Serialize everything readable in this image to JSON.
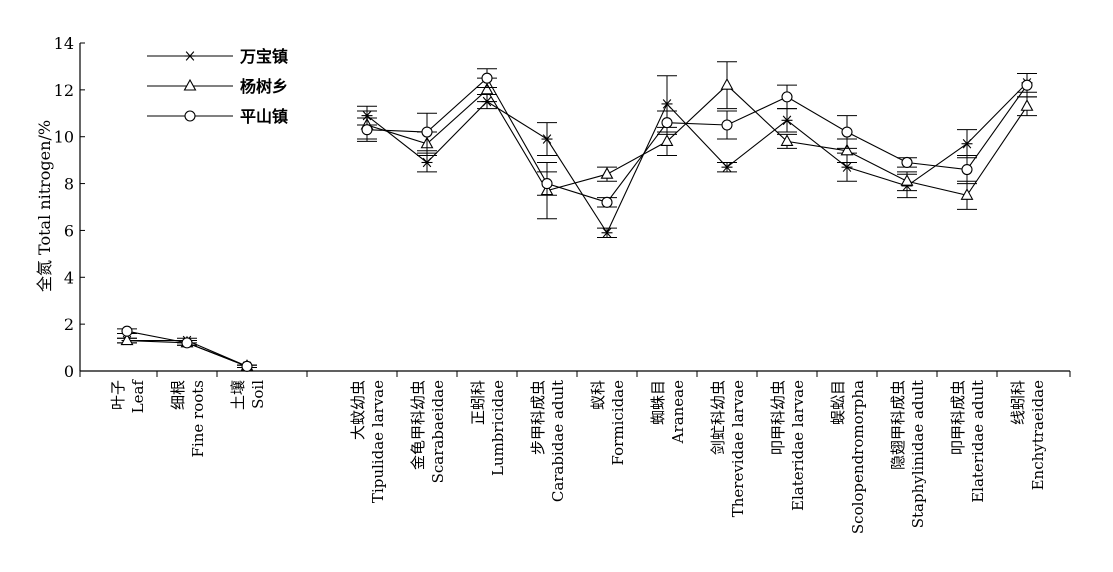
{
  "chart_data": {
    "type": "line",
    "ylabel": "全氮 Total nitrogen/%",
    "ylim": [
      0,
      14
    ],
    "yticks": [
      0,
      2,
      4,
      6,
      8,
      10,
      12,
      14
    ],
    "grid": false,
    "legend_position": "top-left",
    "categories": [
      {
        "zh": "叶子",
        "en": "Leaf"
      },
      {
        "zh": "细根",
        "en": "Fine roots"
      },
      {
        "zh": "土壤",
        "en": "Soil"
      },
      {
        "zh": "大蚊幼虫",
        "en": "Tipulidae larvae"
      },
      {
        "zh": "金龟甲科幼虫",
        "en": "Scarabaeidae"
      },
      {
        "zh": "正蚓科",
        "en": "Lumbricidae"
      },
      {
        "zh": "步甲科成虫",
        "en": "Carabidae adult"
      },
      {
        "zh": "蚁科",
        "en": "Formicidae"
      },
      {
        "zh": "蜘蛛目",
        "en": "Araneae"
      },
      {
        "zh": "剑虻科幼虫",
        "en": "Therevidae larvae"
      },
      {
        "zh": "叩甲科幼虫",
        "en": "Elateridae larvae"
      },
      {
        "zh": "蜈蚣目",
        "en": "Scolopendromorpha"
      },
      {
        "zh": "隐翅甲科成虫",
        "en": "Staphylinidae adult"
      },
      {
        "zh": "叩甲科成虫",
        "en": "Elateridae adult"
      },
      {
        "zh": "线蚓科",
        "en": "Enchytraeidae"
      }
    ],
    "series": [
      {
        "name": "万宝镇",
        "marker": "star",
        "values": [
          1.3,
          1.3,
          0.2,
          10.9,
          8.9,
          11.5,
          9.9,
          5.9,
          11.4,
          8.7,
          10.7,
          8.7,
          7.9,
          9.7,
          12.3
        ],
        "errors": [
          0.1,
          0.1,
          0.05,
          0.4,
          0.4,
          0.3,
          0.7,
          0.2,
          1.2,
          0.2,
          0.5,
          0.6,
          0.5,
          0.6,
          0.4
        ]
      },
      {
        "name": "杨树乡",
        "marker": "triangle",
        "values": [
          1.3,
          1.2,
          0.2,
          10.5,
          9.7,
          12.0,
          7.7,
          8.4,
          9.8,
          12.2,
          9.8,
          9.4,
          8.1,
          7.5,
          11.3
        ],
        "errors": [
          0.1,
          0.1,
          0.05,
          0.6,
          0.5,
          0.5,
          1.2,
          0.3,
          0.6,
          1.0,
          0.3,
          0.5,
          0.4,
          0.6,
          0.4
        ]
      },
      {
        "name": "平山镇",
        "marker": "circle",
        "values": [
          1.7,
          1.2,
          0.2,
          10.3,
          10.2,
          12.5,
          8.0,
          7.2,
          10.6,
          10.5,
          11.7,
          10.2,
          8.9,
          8.6,
          12.2
        ],
        "errors": [
          0.1,
          0.1,
          0.05,
          0.5,
          0.8,
          0.4,
          0.5,
          0.2,
          0.5,
          0.6,
          0.5,
          0.7,
          0.2,
          0.6,
          0.5
        ]
      }
    ],
    "line_groups": [
      [
        0,
        1,
        2
      ],
      [
        3,
        4,
        5,
        6,
        7,
        8,
        9,
        10,
        11,
        12,
        13,
        14
      ]
    ]
  }
}
